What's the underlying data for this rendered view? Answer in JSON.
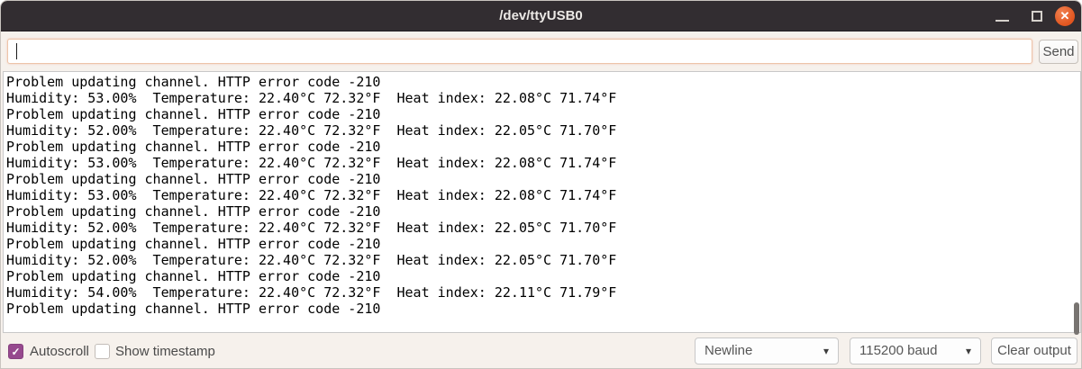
{
  "window": {
    "title": "/dev/ttyUSB0"
  },
  "send_bar": {
    "input_value": "",
    "input_placeholder": "",
    "send_label": "Send"
  },
  "serial_output": {
    "lines": [
      "Problem updating channel. HTTP error code -210",
      "Humidity: 53.00%  Temperature: 22.40°C 72.32°F  Heat index: 22.08°C 71.74°F",
      "Problem updating channel. HTTP error code -210",
      "Humidity: 52.00%  Temperature: 22.40°C 72.32°F  Heat index: 22.05°C 71.70°F",
      "Problem updating channel. HTTP error code -210",
      "Humidity: 53.00%  Temperature: 22.40°C 72.32°F  Heat index: 22.08°C 71.74°F",
      "Problem updating channel. HTTP error code -210",
      "Humidity: 53.00%  Temperature: 22.40°C 72.32°F  Heat index: 22.08°C 71.74°F",
      "Problem updating channel. HTTP error code -210",
      "Humidity: 52.00%  Temperature: 22.40°C 72.32°F  Heat index: 22.05°C 71.70°F",
      "Problem updating channel. HTTP error code -210",
      "Humidity: 52.00%  Temperature: 22.40°C 72.32°F  Heat index: 22.05°C 71.70°F",
      "Problem updating channel. HTTP error code -210",
      "Humidity: 54.00%  Temperature: 22.40°C 72.32°F  Heat index: 22.11°C 71.79°F",
      "Problem updating channel. HTTP error code -210"
    ]
  },
  "status_bar": {
    "autoscroll": {
      "label": "Autoscroll",
      "checked": true
    },
    "show_timestamp": {
      "label": "Show timestamp",
      "checked": false
    },
    "line_ending_selected": "Newline",
    "baud_selected": "115200 baud",
    "clear_label": "Clear output"
  },
  "icons": {
    "close": "✕",
    "checkmark": "✓",
    "dropdown_arrow": "▾"
  },
  "colors": {
    "titlebar_bg": "#322d31",
    "close_button": "#e2551f",
    "checkbox_accent": "#96498e",
    "input_focus_border": "#edc4a9",
    "terminal_bg": "#ffffff",
    "terminal_text": "#000000",
    "window_bg": "#f6f1ec"
  }
}
